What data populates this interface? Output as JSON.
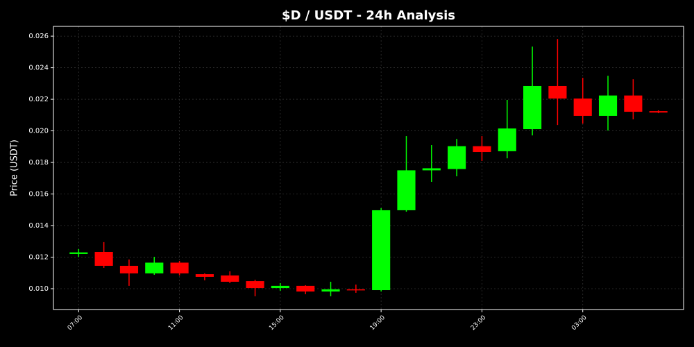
{
  "chart_data": {
    "type": "candlestick",
    "title": "$D / USDT - 24h Analysis",
    "y_label": "Price (USDT)",
    "categories": [
      "07:00",
      null,
      null,
      null,
      "11:00",
      null,
      null,
      null,
      "15:00",
      null,
      null,
      null,
      "19:00",
      null,
      null,
      null,
      "23:00",
      null,
      null,
      null,
      "03:00",
      null,
      null,
      null
    ],
    "open": [
      0.0122,
      0.01233,
      0.01145,
      0.01097,
      0.01165,
      0.01092,
      0.01084,
      0.01048,
      0.01004,
      0.01018,
      0.00982,
      0.00996,
      0.00991,
      0.01497,
      0.0175,
      0.01758,
      0.01903,
      0.01871,
      0.02011,
      0.02284,
      0.02205,
      0.02095,
      0.02224,
      0.02125
    ],
    "high": [
      0.01251,
      0.01295,
      0.01185,
      0.01202,
      0.01176,
      0.01097,
      0.0111,
      0.01057,
      0.01035,
      0.01022,
      0.01044,
      0.01026,
      0.0151,
      0.01967,
      0.0191,
      0.01949,
      0.01967,
      0.02196,
      0.02534,
      0.02582,
      0.02336,
      0.02349,
      0.02327,
      0.0213
    ],
    "low": [
      0.01202,
      0.01132,
      0.01018,
      0.01088,
      0.01084,
      0.01053,
      0.01035,
      0.00952,
      0.00987,
      0.00965,
      0.00952,
      0.00974,
      0.00982,
      0.01488,
      0.01677,
      0.01712,
      0.01809,
      0.01826,
      0.01971,
      0.02037,
      0.02046,
      0.02002,
      0.02073,
      0.02112
    ],
    "close": [
      0.0123,
      0.01145,
      0.01097,
      0.01165,
      0.01097,
      0.01075,
      0.01044,
      0.01004,
      0.01018,
      0.00982,
      0.00996,
      0.00991,
      0.01497,
      0.0175,
      0.01763,
      0.01903,
      0.01866,
      0.02015,
      0.02284,
      0.02205,
      0.02095,
      0.02224,
      0.02121,
      0.02116
    ],
    "up_color": "#00ff00",
    "down_color": "#ff0000",
    "ylim": [
      0.00868,
      0.02662
    ],
    "yticks": [
      {
        "value": 0.01,
        "label": "0.010"
      },
      {
        "value": 0.012,
        "label": "0.012"
      },
      {
        "value": 0.014,
        "label": "0.014"
      },
      {
        "value": 0.016,
        "label": "0.016"
      },
      {
        "value": 0.018,
        "label": "0.018"
      },
      {
        "value": 0.02,
        "label": "0.020"
      },
      {
        "value": 0.022,
        "label": "0.022"
      },
      {
        "value": 0.024,
        "label": "0.024"
      },
      {
        "value": 0.026,
        "label": "0.026"
      }
    ],
    "grid": true
  }
}
